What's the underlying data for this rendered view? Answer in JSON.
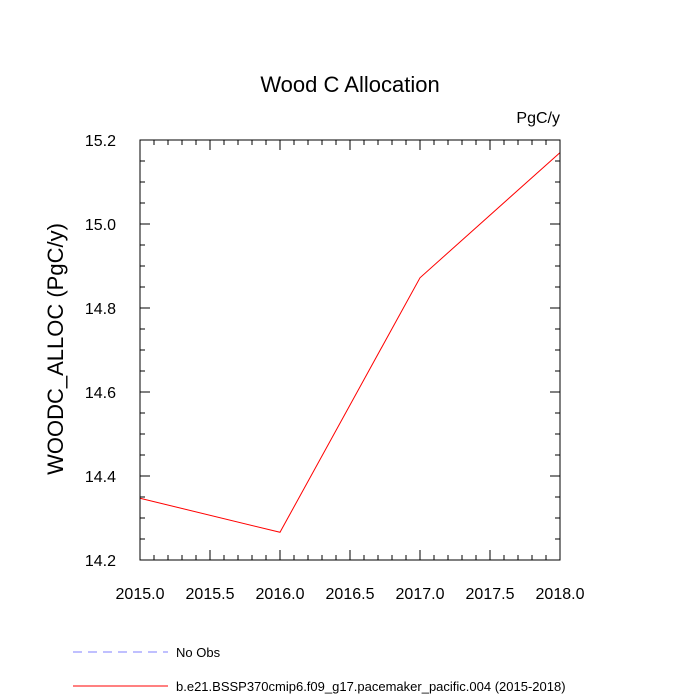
{
  "chart_data": {
    "type": "line",
    "title": "Wood C Allocation",
    "units": "PgC/y",
    "ylabel": "WOODC_ALLOC  (PgC/y)",
    "xlabel": "",
    "xlim": [
      2015.0,
      2018.0
    ],
    "ylim": [
      14.2,
      15.2
    ],
    "x_ticks": [
      "2015.0",
      "2015.5",
      "2016.0",
      "2016.5",
      "2017.0",
      "2017.5",
      "2018.0"
    ],
    "y_ticks": [
      "14.2",
      "14.4",
      "14.6",
      "14.8",
      "15.0",
      "15.2"
    ],
    "grid": false,
    "legend_position": "bottom",
    "series": [
      {
        "name": "b.e21.BSSP370cmip6.f09_g17.pacemaker_pacific.004 (2015-2018)",
        "color": "#ff0000",
        "style": "solid",
        "x": [
          2015,
          2016,
          2017,
          2018
        ],
        "values": [
          14.347,
          14.266,
          14.872,
          15.17
        ]
      }
    ],
    "legend": [
      {
        "label": "No Obs",
        "color": "#8080ff",
        "style": "dashed"
      },
      {
        "label": "b.e21.BSSP370cmip6.f09_g17.pacemaker_pacific.004 (2015-2018)",
        "color": "#ff0000",
        "style": "solid"
      }
    ]
  }
}
